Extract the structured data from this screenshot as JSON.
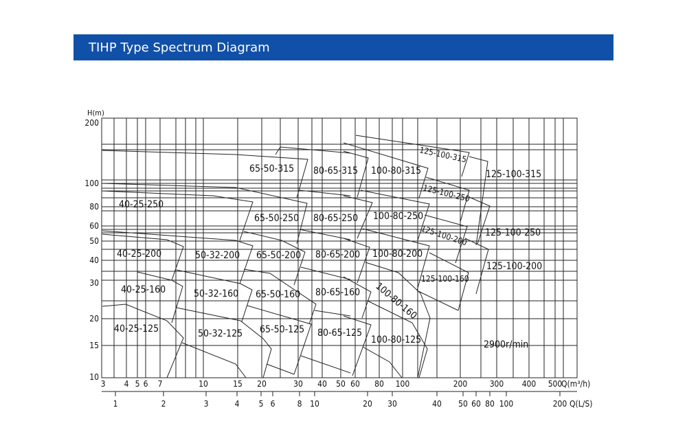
{
  "header": {
    "title": "TIHP Type Spectrum Diagram",
    "color": "#1150a8"
  },
  "diagram": {
    "y_axis_label": "H(m)",
    "y_ticks": [
      "200",
      "100",
      "80",
      "60",
      "50",
      "40",
      "30",
      "20",
      "15",
      "10"
    ],
    "x_axis_label_m3h": "Q(m³/h)",
    "x_ticks_m3h": [
      "3",
      "4",
      "5",
      "6",
      "7",
      "10",
      "15",
      "20",
      "30",
      "40",
      "50",
      "60",
      "80",
      "100",
      "200",
      "300",
      "400",
      "500"
    ],
    "x_axis_label_ls": "Q(L/S)",
    "x_ticks_ls": [
      "1",
      "2",
      "3",
      "4",
      "5",
      "6",
      "8",
      "10",
      "20",
      "30",
      "40",
      "50",
      "60",
      "80",
      "100",
      "200"
    ],
    "scale": "log-log",
    "speed_note": "2900r/min",
    "models": [
      "40-25-250",
      "40-25-200",
      "40-25-160",
      "40-25-125",
      "50-32-200",
      "50-32-160",
      "50-32-125",
      "65-50-315",
      "65-50-250",
      "65-50-200",
      "65-50-160",
      "65-50-125",
      "80-65-315",
      "80-65-250",
      "80-65-200",
      "80-65-160",
      "80-65-125",
      "100-80-315",
      "100-80-250",
      "100-80-200",
      "100-80-160",
      "100-80-125",
      "125-100-315",
      "125-100-315",
      "125-100-250",
      "125-100-250",
      "125-100-200",
      "125-100-200",
      "125-100-160"
    ]
  }
}
